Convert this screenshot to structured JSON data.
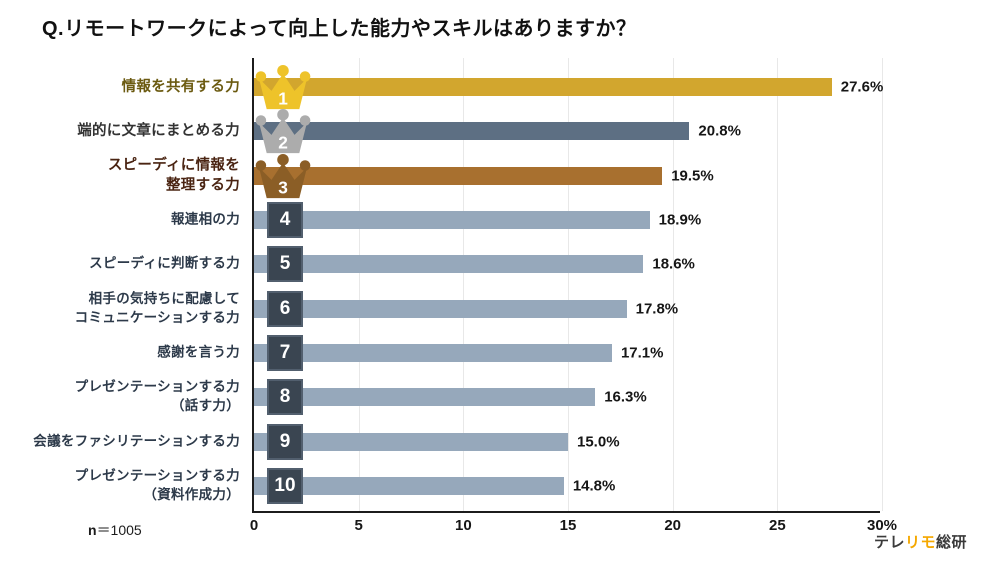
{
  "page": {
    "sample": {
      "prefix": "n",
      "value": "＝1005"
    },
    "brand": {
      "parts": [
        {
          "text": "テレ",
          "color": "#3a3a3a"
        },
        {
          "text": "リモ",
          "color": "#f5a800"
        },
        {
          "text": "総研",
          "color": "#3a3a3a"
        }
      ]
    }
  },
  "chart_data": {
    "type": "bar",
    "orientation": "horizontal",
    "title": "Q.リモートワークによって向上した能力やスキルはありますか？",
    "xlim": [
      0,
      30
    ],
    "x_ticks": [
      0,
      5,
      10,
      15,
      20,
      25,
      30
    ],
    "x_tick_labels": [
      "0",
      "5",
      "10",
      "15",
      "20",
      "25",
      "30%"
    ],
    "grid": true,
    "unit": "%",
    "sample_size": 1005,
    "legend": "none",
    "rows": [
      {
        "rank": 1,
        "label_lines": [
          "情報を共有する力"
        ],
        "value": 27.6,
        "value_label": "27.6%",
        "badge": "crown-gold",
        "bar_color": "#d2a62e",
        "badge_color": "#eec32a",
        "label_color": "#6b5a10"
      },
      {
        "rank": 2,
        "label_lines": [
          "端的に文章にまとめる力"
        ],
        "value": 20.8,
        "value_label": "20.8%",
        "badge": "crown-silver",
        "bar_color": "#5d6f83",
        "badge_color": "#acacac",
        "label_color": "#333333"
      },
      {
        "rank": 3,
        "label_lines": [
          "スピーディに情報を",
          "整理する力"
        ],
        "value": 19.5,
        "value_label": "19.5%",
        "badge": "crown-bronze",
        "bar_color": "#a8702f",
        "badge_color": "#8b5e26",
        "label_color": "#4a2412"
      },
      {
        "rank": 4,
        "label_lines": [
          "報連相の力"
        ],
        "value": 18.9,
        "value_label": "18.9%",
        "badge": "square",
        "bar_color": "#96a8bb",
        "badge_color": "#3a4551",
        "label_color": "#2d3a4a"
      },
      {
        "rank": 5,
        "label_lines": [
          "スピーディに判断する力"
        ],
        "value": 18.6,
        "value_label": "18.6%",
        "badge": "square",
        "bar_color": "#96a8bb",
        "badge_color": "#3a4551",
        "label_color": "#2d3a4a"
      },
      {
        "rank": 6,
        "label_lines": [
          "相手の気持ちに配慮して",
          "コミュニケーションする力"
        ],
        "value": 17.8,
        "value_label": "17.8%",
        "badge": "square",
        "bar_color": "#96a8bb",
        "badge_color": "#3a4551",
        "label_color": "#2d3a4a"
      },
      {
        "rank": 7,
        "label_lines": [
          "感謝を言う力"
        ],
        "value": 17.1,
        "value_label": "17.1%",
        "badge": "square",
        "bar_color": "#96a8bb",
        "badge_color": "#3a4551",
        "label_color": "#2d3a4a"
      },
      {
        "rank": 8,
        "label_lines": [
          "プレゼンテーションする力",
          "（話す力）"
        ],
        "value": 16.3,
        "value_label": "16.3%",
        "badge": "square",
        "bar_color": "#96a8bb",
        "badge_color": "#3a4551",
        "label_color": "#2d3a4a"
      },
      {
        "rank": 9,
        "label_lines": [
          "会議をファシリテーションする力"
        ],
        "value": 15.0,
        "value_label": "15.0%",
        "badge": "square",
        "bar_color": "#96a8bb",
        "badge_color": "#3a4551",
        "label_color": "#2d3a4a"
      },
      {
        "rank": 10,
        "label_lines": [
          "プレゼンテーションする力",
          "（資料作成力）"
        ],
        "value": 14.8,
        "value_label": "14.8%",
        "badge": "square",
        "bar_color": "#96a8bb",
        "badge_color": "#3a4551",
        "label_color": "#2d3a4a"
      }
    ]
  }
}
